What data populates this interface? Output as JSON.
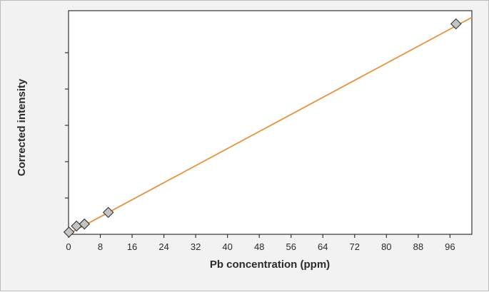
{
  "chart_data": {
    "type": "scatter",
    "title": "",
    "xlabel": "Pb concentration (ppm)",
    "ylabel": "Corrected intensity",
    "xlim": [
      0,
      101.5
    ],
    "ylim": [
      0,
      10
    ],
    "x_ticks": [
      "0",
      "8",
      "16",
      "24",
      "32",
      "40",
      "48",
      "56",
      "64",
      "72",
      "80",
      "88",
      "96"
    ],
    "y_ticks_labeled": false,
    "y_tick_count": 5,
    "grid": false,
    "legend": "none",
    "series": [
      {
        "marker": "diamond",
        "marker_color": "#c4c4c4",
        "points": [
          {
            "x": 0.1,
            "y": 0.1
          },
          {
            "x": 2,
            "y": 0.37
          },
          {
            "x": 4,
            "y": 0.46
          },
          {
            "x": 10,
            "y": 0.98
          },
          {
            "x": 97.5,
            "y": 9.41
          }
        ]
      }
    ],
    "fit_line": {
      "color": "#e8923a",
      "x": [
        0,
        101.5
      ],
      "y": [
        0.02,
        9.7
      ]
    }
  }
}
